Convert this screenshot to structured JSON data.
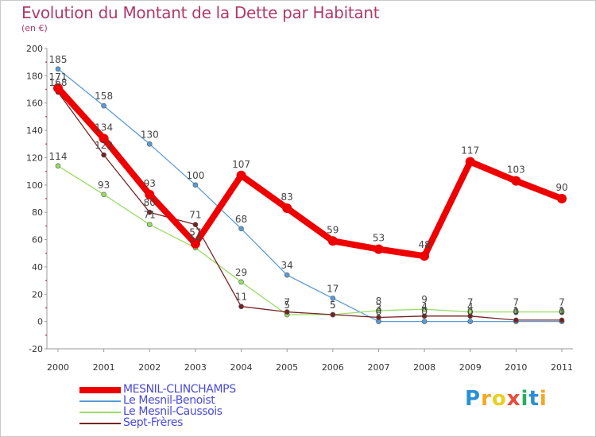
{
  "chart_data": {
    "type": "line",
    "title": "Evolution du Montant de la Dette par Habitant",
    "subtitle": "(en €)",
    "categories": [
      "2000",
      "2001",
      "2002",
      "2003",
      "2004",
      "2005",
      "2006",
      "2007",
      "2008",
      "2009",
      "2010",
      "2011"
    ],
    "ylim": [
      -20,
      200
    ],
    "yticks": [
      -20,
      0,
      20,
      40,
      60,
      80,
      100,
      120,
      140,
      160,
      180,
      200
    ],
    "grid": false,
    "legend_position": "bottom-left",
    "series": [
      {
        "name": "MESNIL-CLINCHAMPS",
        "color": "#ee0000",
        "width": 8,
        "values": [
          171,
          134,
          93,
          57,
          107,
          83,
          59,
          53,
          48,
          117,
          103,
          90
        ],
        "labels": [
          "171",
          "134",
          "93",
          "57",
          "107",
          "83",
          "59",
          "53",
          "48",
          "117",
          "103",
          "90"
        ]
      },
      {
        "name": "Le Mesnil-Benoist",
        "color": "#5b9bd5",
        "width": 1.3,
        "values": [
          185,
          158,
          130,
          100,
          68,
          34,
          17,
          0,
          0,
          0,
          0,
          0
        ],
        "labels": [
          "185",
          "158",
          "130",
          "100",
          "68",
          "34",
          "17",
          "0",
          "0",
          "0",
          "0",
          "0"
        ]
      },
      {
        "name": "Le Mesnil-Caussois",
        "color": "#99dd66",
        "width": 1.3,
        "values": [
          114,
          93,
          71,
          54,
          29,
          5,
          5,
          8,
          9,
          7,
          7,
          7
        ],
        "labels": [
          "114",
          "93",
          "71",
          "54",
          "29",
          "5",
          "5",
          "8",
          "9",
          "7",
          "7",
          "7"
        ]
      },
      {
        "name": "Sept-Frères",
        "color": "#772222",
        "width": 1.3,
        "values": [
          168,
          122,
          80,
          71,
          11,
          7,
          5,
          3,
          4,
          4,
          1,
          1
        ],
        "labels": [
          "168",
          "122",
          "80",
          "71",
          "11",
          "7",
          "5",
          "3",
          "4",
          "4",
          "1",
          "1"
        ]
      }
    ]
  },
  "logo": {
    "text": "Proxiti",
    "letters": [
      {
        "ch": "P",
        "color": "#2c8fd6"
      },
      {
        "ch": "r",
        "color": "#f5a623"
      },
      {
        "ch": "o",
        "color": "#e8d020"
      },
      {
        "ch": "x",
        "color": "#e74c3c"
      },
      {
        "ch": "i",
        "color": "#27ae60"
      },
      {
        "ch": "t",
        "color": "#2c8fd6"
      },
      {
        "ch": "i",
        "color": "#f5a623"
      }
    ]
  }
}
